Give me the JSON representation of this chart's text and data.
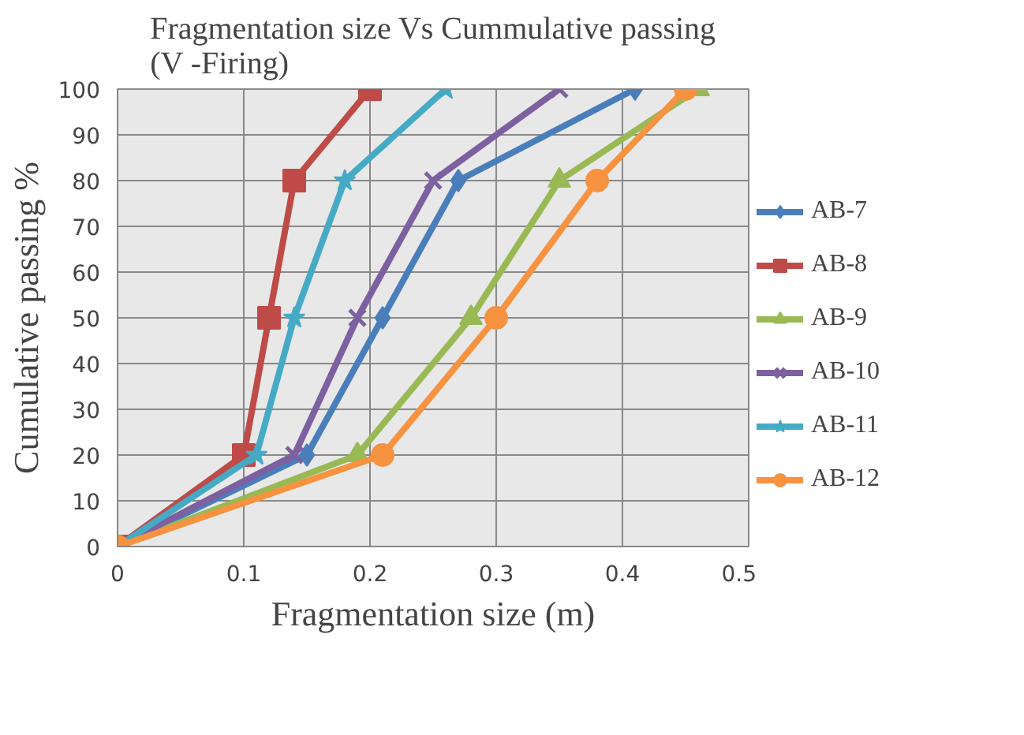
{
  "chart_data": {
    "type": "line",
    "title": "Fragmentation size Vs Cummulative passing (V -Firing)",
    "xlabel": "Fragmentation size (m)",
    "ylabel": "Cumulative passing %",
    "xlim": [
      0,
      0.5
    ],
    "xticks": [
      0,
      0.1,
      0.2,
      0.3,
      0.4,
      0.5
    ],
    "ylim": [
      0,
      100
    ],
    "yticks": [
      0,
      10,
      20,
      30,
      40,
      50,
      60,
      70,
      80,
      90,
      100
    ],
    "grid": true,
    "legend": "right",
    "series": [
      {
        "name": "AB-7",
        "color": "#4a7ebb",
        "marker": "diamond",
        "x": [
          0,
          0.15,
          0.21,
          0.27,
          0.41
        ],
        "values": [
          0,
          20,
          50,
          80,
          100
        ]
      },
      {
        "name": "AB-8",
        "color": "#be4b48",
        "marker": "square",
        "x": [
          0,
          0.1,
          0.12,
          0.14,
          0.2
        ],
        "values": [
          0,
          20,
          50,
          80,
          100
        ]
      },
      {
        "name": "AB-9",
        "color": "#98b954",
        "marker": "triangle",
        "x": [
          0,
          0.19,
          0.28,
          0.35,
          0.46
        ],
        "values": [
          0,
          20,
          50,
          80,
          100
        ]
      },
      {
        "name": "AB-10",
        "color": "#7d60a0",
        "marker": "cross",
        "x": [
          0,
          0.14,
          0.19,
          0.25,
          0.35
        ],
        "values": [
          0,
          20,
          50,
          80,
          100
        ]
      },
      {
        "name": "AB-11",
        "color": "#46aac5",
        "marker": "star",
        "x": [
          0,
          0.11,
          0.14,
          0.18,
          0.26
        ],
        "values": [
          0,
          20,
          50,
          80,
          100
        ]
      },
      {
        "name": "AB-12",
        "color": "#f69240",
        "marker": "circle",
        "x": [
          0,
          0.21,
          0.3,
          0.38,
          0.45
        ],
        "values": [
          0,
          20,
          50,
          80,
          100
        ]
      }
    ]
  }
}
